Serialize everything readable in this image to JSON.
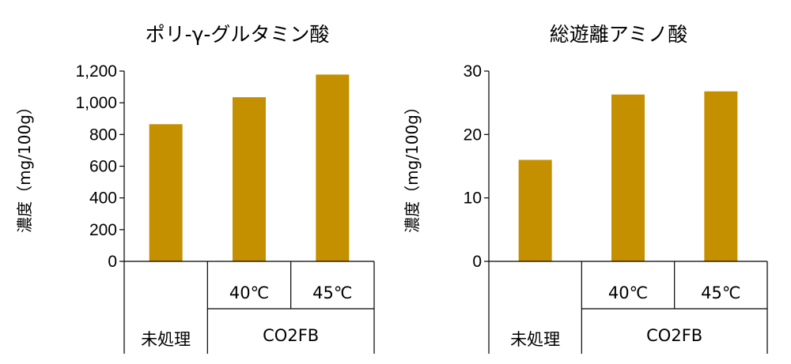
{
  "chart_data": [
    {
      "type": "bar",
      "title": "ポリ-γ-グルタミン酸",
      "ylabel": "濃度（mg/100g）",
      "ylim": [
        0,
        1200
      ],
      "yticks": [
        "0",
        "200",
        "400",
        "600",
        "800",
        "1,000",
        "1,200"
      ],
      "ytick_values": [
        0,
        200,
        400,
        600,
        800,
        1000,
        1200
      ],
      "categories": [
        "未処理",
        "40℃",
        "45℃"
      ],
      "group_label": "CO2FB",
      "values": [
        865,
        1035,
        1178
      ],
      "bar_color": "#C49000"
    },
    {
      "type": "bar",
      "title": "総遊離アミノ酸",
      "ylabel": "濃度（mg/100g）",
      "ylim": [
        0,
        30
      ],
      "yticks": [
        "0",
        "10",
        "20",
        "30"
      ],
      "ytick_values": [
        0,
        10,
        20,
        30
      ],
      "categories": [
        "未処理",
        "40℃",
        "45℃"
      ],
      "group_label": "CO2FB",
      "values": [
        16,
        26.3,
        26.8
      ],
      "bar_color": "#C49000"
    }
  ]
}
